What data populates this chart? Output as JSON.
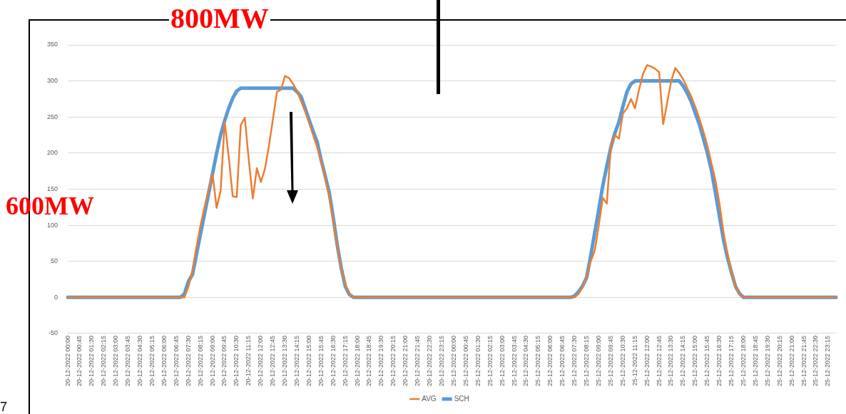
{
  "chart_data": {
    "type": "line",
    "categories": [
      "20-12-2022 00:00",
      null,
      null,
      "20-12-2022 00:45",
      null,
      null,
      "20-12-2022 01:30",
      null,
      null,
      "20-12-2022 02:15",
      null,
      null,
      "20-12-2022 03:00",
      null,
      null,
      "20-12-2022 03:45",
      null,
      null,
      "20-12-2022 04:30",
      null,
      null,
      "20-12-2022 05:15",
      null,
      null,
      "20-12-2022 06:00",
      null,
      null,
      "20-12-2022 06:45",
      null,
      null,
      "20-12-2022 07:30",
      null,
      null,
      "20-12-2022 08:15",
      null,
      null,
      "20-12-2022 09:00",
      null,
      null,
      "20-12-2022 09:45",
      null,
      null,
      "20-12-2022 10:30",
      null,
      null,
      "20-12-2022 11:15",
      null,
      null,
      "20-12-2022 12:00",
      null,
      null,
      "20-12-2022 12:45",
      null,
      null,
      "20-12-2022 13:30",
      null,
      null,
      "20-12-2022 14:15",
      null,
      null,
      "20-12-2022 15:00",
      null,
      null,
      "20-12-2022 15:45",
      null,
      null,
      "20-12-2022 16:30",
      null,
      null,
      "20-12-2022 17:15",
      null,
      null,
      "20-12-2022 18:00",
      null,
      null,
      "20-12-2022 18:45",
      null,
      null,
      "20-12-2022 19:30",
      null,
      null,
      "20-12-2022 20:15",
      null,
      null,
      "20-12-2022 21:00",
      null,
      null,
      "20-12-2022 21:45",
      null,
      null,
      "20-12-2022 22:30",
      null,
      null,
      "20-12-2022 23:15",
      null,
      null,
      "25-12-2022 00:00",
      null,
      null,
      "25-12-2022 00:45",
      null,
      null,
      "25-12-2022 01:30",
      null,
      null,
      "25-12-2022 02:15",
      null,
      null,
      "25-12-2022 03:00",
      null,
      null,
      "25-12-2022 03:45",
      null,
      null,
      "25-12-2022 04:30",
      null,
      null,
      "25-12-2022 05:15",
      null,
      null,
      "25-12-2022 06:00",
      null,
      null,
      "25-12-2022 06:45",
      null,
      null,
      "25-12-2022 07:30",
      null,
      null,
      "25-12-2022 08:15",
      null,
      null,
      "25-12-2022 09:00",
      null,
      null,
      "25-12-2022 09:45",
      null,
      null,
      "25-12-2022 10:30",
      null,
      null,
      "25-12-2022 11:15",
      null,
      null,
      "25-12-2022 12:00",
      null,
      null,
      "25-12-2022 12:45",
      null,
      null,
      "25-12-2022 13:30",
      null,
      null,
      "25-12-2022 14:15",
      null,
      null,
      "25-12-2022 15:00",
      null,
      null,
      "25-12-2022 15:45",
      null,
      null,
      "25-12-2022 16:30",
      null,
      null,
      "25-12-2022 17:15",
      null,
      null,
      "25-12-2022 18:00",
      null,
      null,
      "25-12-2022 18:45",
      null,
      null,
      "25-12-2022 19:30",
      null,
      null,
      "25-12-2022 20:15",
      null,
      null,
      "25-12-2022 21:00",
      null,
      null,
      "25-12-2022 21:45",
      null,
      null,
      "25-12-2022 22:30",
      null,
      null,
      "25-12-2022 23:15",
      null,
      null
    ],
    "series": [
      {
        "name": "SCH",
        "color": "#5b9bd5",
        "values": [
          0,
          0,
          0,
          0,
          0,
          0,
          0,
          0,
          0,
          0,
          0,
          0,
          0,
          0,
          0,
          0,
          0,
          0,
          0,
          0,
          0,
          0,
          0,
          0,
          0,
          0,
          0,
          0,
          0,
          5,
          22,
          32,
          60,
          88,
          116,
          144,
          172,
          200,
          225,
          245,
          262,
          276,
          286,
          290,
          290,
          290,
          290,
          290,
          290,
          290,
          290,
          290,
          290,
          290,
          290,
          290,
          290,
          285,
          278,
          262,
          246,
          230,
          215,
          190,
          168,
          145,
          110,
          72,
          40,
          15,
          4,
          0,
          0,
          0,
          0,
          0,
          0,
          0,
          0,
          0,
          0,
          0,
          0,
          0,
          0,
          0,
          0,
          0,
          0,
          0,
          0,
          0,
          0,
          0,
          0,
          0,
          0,
          0,
          0,
          0,
          0,
          0,
          0,
          0,
          0,
          0,
          0,
          0,
          0,
          0,
          0,
          0,
          0,
          0,
          0,
          0,
          0,
          0,
          0,
          0,
          0,
          0,
          0,
          0,
          0,
          0,
          2,
          8,
          16,
          28,
          58,
          90,
          122,
          155,
          182,
          208,
          228,
          243,
          265,
          285,
          296,
          300,
          300,
          300,
          300,
          300,
          300,
          300,
          300,
          300,
          300,
          300,
          300,
          293,
          283,
          271,
          255,
          240,
          220,
          200,
          176,
          145,
          112,
          80,
          55,
          34,
          15,
          5,
          0,
          0,
          0,
          0,
          0,
          0,
          0,
          0,
          0,
          0,
          0,
          0,
          0,
          0,
          0,
          0,
          0,
          0,
          0,
          0,
          0,
          0,
          0,
          0
        ]
      },
      {
        "name": "AVG",
        "color": "#ed7d31",
        "values": [
          0,
          0,
          0,
          0,
          0,
          0,
          0,
          0,
          0,
          0,
          0,
          0,
          0,
          0,
          0,
          0,
          0,
          0,
          0,
          0,
          0,
          0,
          0,
          0,
          0,
          0,
          0,
          0,
          0,
          0,
          15,
          38,
          70,
          100,
          125,
          150,
          171,
          124,
          148,
          244,
          195,
          140,
          139,
          239,
          249,
          190,
          137,
          179,
          160,
          178,
          210,
          247,
          285,
          288,
          307,
          304,
          296,
          286,
          272,
          258,
          242,
          225,
          208,
          189,
          165,
          140,
          105,
          70,
          40,
          18,
          5,
          0,
          0,
          0,
          0,
          0,
          0,
          0,
          0,
          0,
          0,
          0,
          0,
          0,
          0,
          0,
          0,
          0,
          0,
          0,
          0,
          0,
          0,
          0,
          0,
          0,
          0,
          0,
          0,
          0,
          0,
          0,
          0,
          0,
          0,
          0,
          0,
          0,
          0,
          0,
          0,
          0,
          0,
          0,
          0,
          0,
          0,
          0,
          0,
          0,
          0,
          0,
          0,
          0,
          0,
          0,
          0,
          5,
          15,
          30,
          50,
          65,
          100,
          138,
          130,
          210,
          225,
          220,
          255,
          262,
          275,
          262,
          288,
          310,
          322,
          320,
          317,
          312,
          240,
          270,
          300,
          318,
          311,
          302,
          290,
          278,
          264,
          248,
          230,
          210,
          186,
          162,
          130,
          90,
          60,
          35,
          15,
          4,
          0,
          0,
          0,
          0,
          0,
          0,
          0,
          0,
          0,
          0,
          0,
          0,
          0,
          0,
          0,
          0,
          0,
          0,
          0,
          0,
          0,
          0,
          0,
          0
        ]
      }
    ],
    "ylim": [
      -50,
      350
    ],
    "yticks": [
      -50,
      0,
      50,
      100,
      150,
      200,
      250,
      300,
      350
    ],
    "grid": "y",
    "legend": "bottom",
    "marker": "none",
    "line_style": "solid",
    "annotations": [
      "800MW",
      "600MW",
      "7"
    ]
  }
}
